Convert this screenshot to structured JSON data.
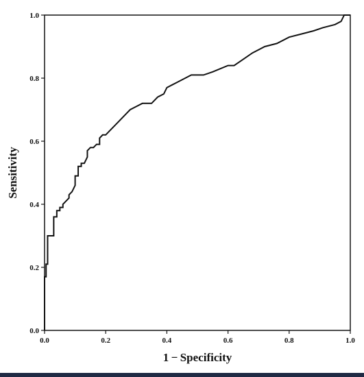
{
  "chart_data": {
    "type": "line",
    "title": "",
    "xlabel": "1 − Specificity",
    "ylabel": "Sensitivity",
    "xlim": [
      0,
      1
    ],
    "ylim": [
      0,
      1
    ],
    "x_ticks": [
      "0.0",
      "0.2",
      "0.4",
      "0.6",
      "0.8",
      "1.0"
    ],
    "y_ticks": [
      "0.0",
      "0.2",
      "0.4",
      "0.6",
      "0.8",
      "1.0"
    ],
    "grid": false,
    "legend": "none",
    "line_color": "#111111",
    "series": [
      {
        "name": "",
        "x": [
          0.0,
          0.0,
          0.005,
          0.005,
          0.01,
          0.01,
          0.03,
          0.03,
          0.04,
          0.04,
          0.05,
          0.05,
          0.06,
          0.06,
          0.07,
          0.08,
          0.08,
          0.09,
          0.1,
          0.1,
          0.11,
          0.11,
          0.12,
          0.12,
          0.13,
          0.14,
          0.14,
          0.15,
          0.16,
          0.17,
          0.18,
          0.18,
          0.19,
          0.2,
          0.22,
          0.24,
          0.26,
          0.27,
          0.28,
          0.3,
          0.32,
          0.35,
          0.37,
          0.39,
          0.4,
          0.42,
          0.44,
          0.48,
          0.52,
          0.55,
          0.6,
          0.62,
          0.65,
          0.68,
          0.72,
          0.76,
          0.8,
          0.84,
          0.88,
          0.91,
          0.95,
          0.97,
          0.98,
          1.0
        ],
        "y": [
          0.0,
          0.17,
          0.17,
          0.21,
          0.21,
          0.3,
          0.3,
          0.36,
          0.36,
          0.38,
          0.38,
          0.39,
          0.39,
          0.4,
          0.41,
          0.42,
          0.43,
          0.44,
          0.46,
          0.49,
          0.49,
          0.52,
          0.52,
          0.53,
          0.53,
          0.55,
          0.57,
          0.58,
          0.58,
          0.59,
          0.59,
          0.61,
          0.62,
          0.62,
          0.64,
          0.66,
          0.68,
          0.69,
          0.7,
          0.71,
          0.72,
          0.72,
          0.74,
          0.75,
          0.77,
          0.78,
          0.79,
          0.81,
          0.81,
          0.82,
          0.84,
          0.84,
          0.86,
          0.88,
          0.9,
          0.91,
          0.93,
          0.94,
          0.95,
          0.96,
          0.97,
          0.98,
          1.0,
          1.0
        ]
      }
    ]
  }
}
